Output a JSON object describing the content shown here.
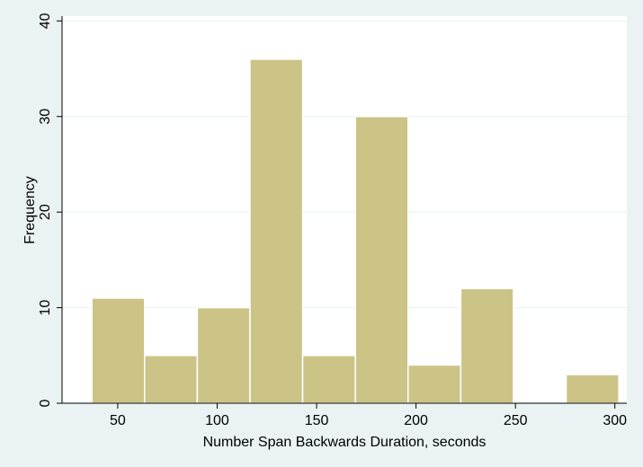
{
  "chart_data": {
    "type": "bar",
    "subtype": "histogram",
    "title": "",
    "xlabel": "Number Span Backwards Duration, seconds",
    "ylabel": "Frequency",
    "bins": [
      {
        "start": 37,
        "end": 63.5,
        "value": 11
      },
      {
        "start": 63.5,
        "end": 90,
        "value": 5
      },
      {
        "start": 90,
        "end": 116.5,
        "value": 10
      },
      {
        "start": 116.5,
        "end": 143,
        "value": 36
      },
      {
        "start": 143,
        "end": 169.5,
        "value": 5
      },
      {
        "start": 169.5,
        "end": 196,
        "value": 30
      },
      {
        "start": 196,
        "end": 222.5,
        "value": 4
      },
      {
        "start": 222.5,
        "end": 249,
        "value": 12
      },
      {
        "start": 249,
        "end": 275.5,
        "value": 0
      },
      {
        "start": 275.5,
        "end": 302,
        "value": 3
      }
    ],
    "xlim": [
      22,
      306
    ],
    "ylim": [
      0,
      40.5
    ],
    "xticks": [
      50,
      100,
      150,
      200,
      250,
      300
    ],
    "yticks": [
      0,
      10,
      20,
      30,
      40
    ],
    "grid": true,
    "colors": {
      "background": "#eaf2f3",
      "plot_background": "#ffffff",
      "bar_fill": "#ccc487",
      "bar_edge": "#ffffff",
      "grid": "#eaf2f3",
      "axis": "#000000"
    }
  }
}
